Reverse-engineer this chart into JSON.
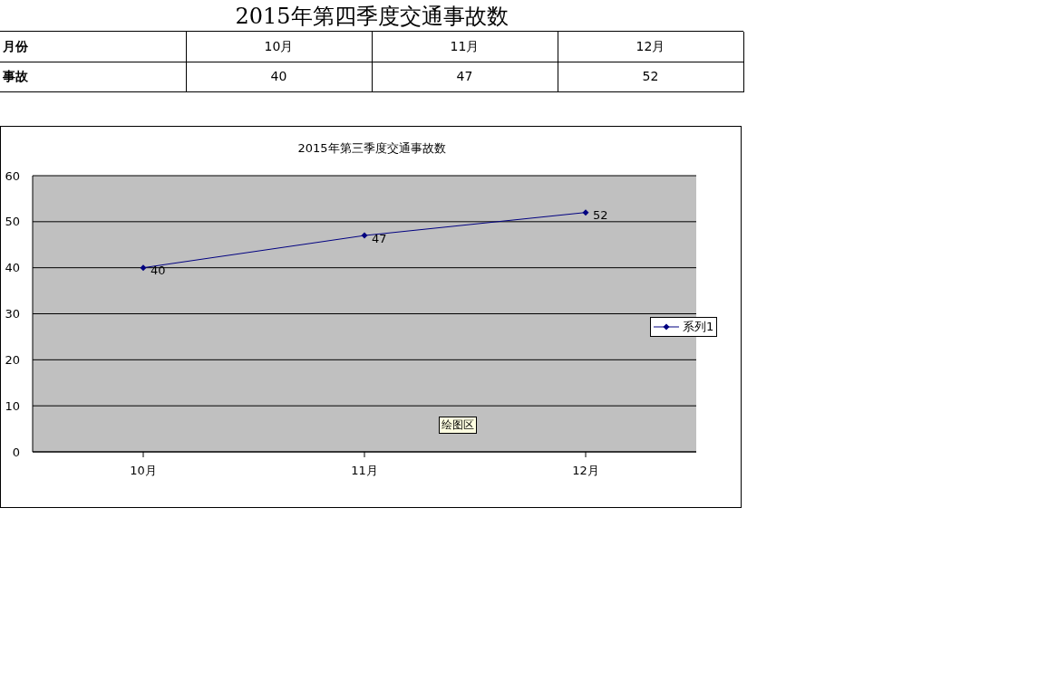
{
  "chart_data": {
    "type": "line",
    "title": "2015年第三季度交通事故数",
    "annotations": [
      "2015年第四季度交通事故数",
      "绘图区",
      "月份",
      "事故",
      "40",
      "47",
      "52"
    ],
    "categories": [
      "10月",
      "11月",
      "12月"
    ],
    "series": [
      {
        "name": "系列1",
        "color": "#000080",
        "values": [
          40,
          47,
          52
        ]
      }
    ],
    "ylim": [
      0,
      60
    ],
    "yticks": [
      0,
      10,
      20,
      30,
      40,
      50,
      60
    ],
    "grid": "y",
    "legend": "right",
    "marker": "diamond",
    "line_style": "solid",
    "data_labels": true
  }
}
